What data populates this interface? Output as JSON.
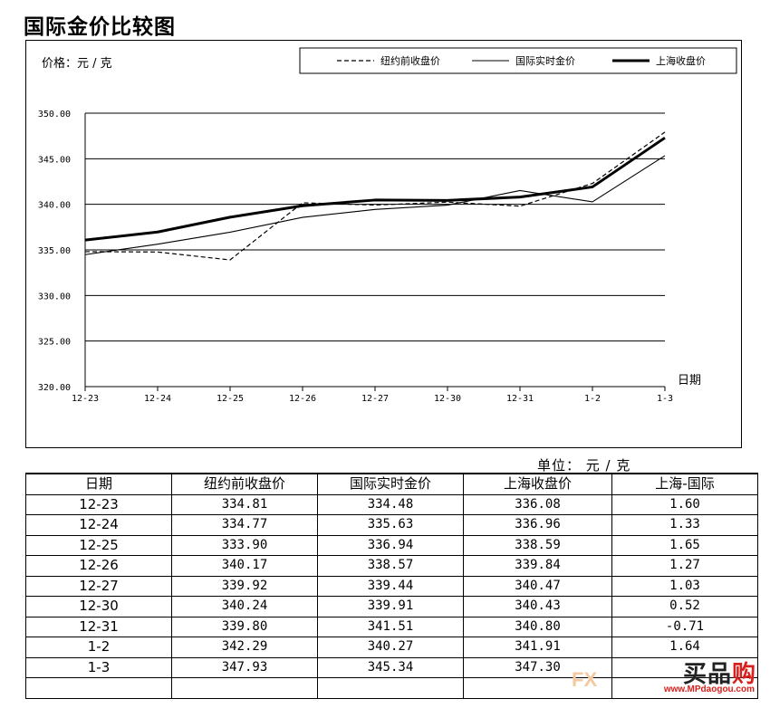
{
  "page": {
    "title": "国际金价比较图",
    "unit_text": "单位：  元 / 克"
  },
  "chart_data": {
    "type": "line",
    "ylabel": "价格：元 / 克",
    "xlabel": "日期",
    "categories": [
      "12-23",
      "12-24",
      "12-25",
      "12-26",
      "12-27",
      "12-30",
      "12-31",
      "1-2",
      "1-3"
    ],
    "ylim": [
      320,
      350
    ],
    "yticks": [
      320,
      325,
      330,
      335,
      340,
      345,
      350
    ],
    "ytick_labels": [
      "320.00",
      "325.00",
      "330.00",
      "335.00",
      "340.00",
      "345.00",
      "350.00"
    ],
    "grid": "horizontal",
    "legend_position": "top-right",
    "series": [
      {
        "name": "纽约前收盘价",
        "style": "dashed",
        "color": "#000000",
        "values": [
          334.81,
          334.77,
          333.9,
          340.17,
          339.92,
          340.24,
          339.8,
          342.29,
          347.93
        ]
      },
      {
        "name": "国际实时金价",
        "style": "thin",
        "color": "#000000",
        "values": [
          334.48,
          335.63,
          336.94,
          338.57,
          339.44,
          339.91,
          341.51,
          340.27,
          345.34
        ]
      },
      {
        "name": "上海收盘价",
        "style": "thick",
        "color": "#000000",
        "values": [
          336.08,
          336.96,
          338.59,
          339.84,
          340.47,
          340.43,
          340.8,
          341.91,
          347.3
        ]
      }
    ]
  },
  "table": {
    "headers": [
      "日期",
      "纽约前收盘价",
      "国际实时金价",
      "上海收盘价",
      "上海-国际"
    ],
    "rows": [
      [
        "12-23",
        "334.81",
        "334.48",
        "336.08",
        "1.60"
      ],
      [
        "12-24",
        "334.77",
        "335.63",
        "336.96",
        "1.33"
      ],
      [
        "12-25",
        "333.90",
        "336.94",
        "338.59",
        "1.65"
      ],
      [
        "12-26",
        "340.17",
        "338.57",
        "339.84",
        "1.27"
      ],
      [
        "12-27",
        "339.92",
        "339.44",
        "340.47",
        "1.03"
      ],
      [
        "12-30",
        "340.24",
        "339.91",
        "340.43",
        "0.52"
      ],
      [
        "12-31",
        "339.80",
        "341.51",
        "340.80",
        "-0.71"
      ],
      [
        "1-2",
        "342.29",
        "340.27",
        "341.91",
        "1.64"
      ],
      [
        "1-3",
        "347.93",
        "345.34",
        "347.30",
        ""
      ],
      [
        "",
        "",
        "",
        "",
        ""
      ]
    ]
  },
  "watermark": {
    "logo_a": "买",
    "logo_b": "品",
    "logo_c": "购",
    "url": "www.MPdaogou.com",
    "fx": "FX"
  }
}
